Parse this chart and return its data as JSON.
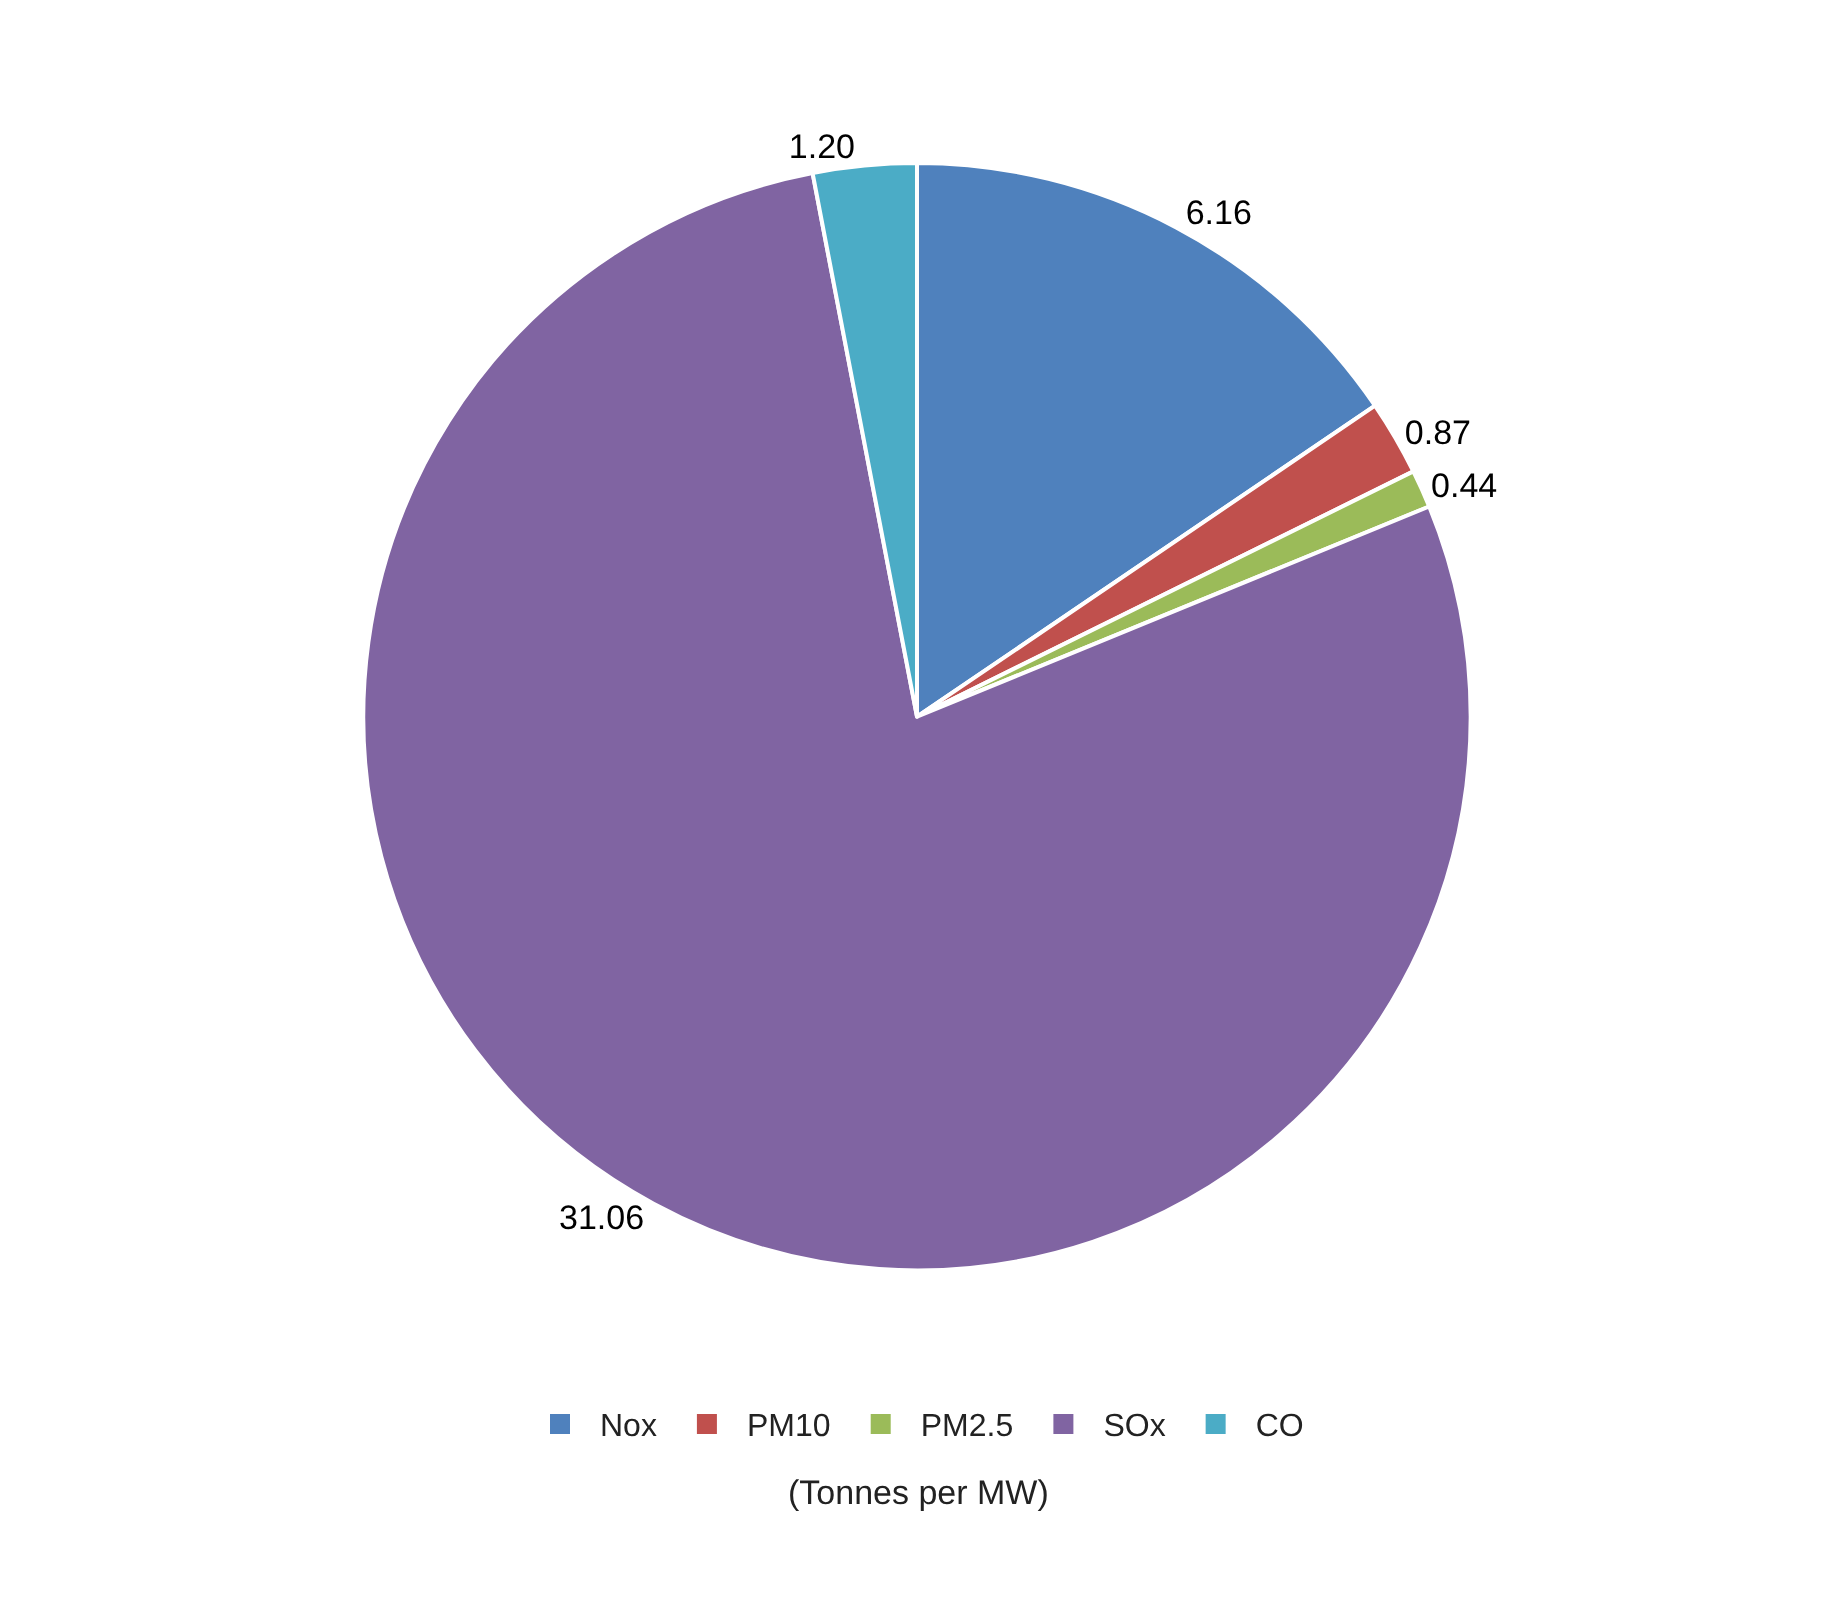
{
  "chart_data": {
    "type": "pie",
    "categories": [
      "Nox",
      "PM10",
      "PM2.5",
      "SOx",
      "CO"
    ],
    "values": [
      6.16,
      0.87,
      0.44,
      31.06,
      1.2
    ],
    "value_labels": [
      "6.16",
      "0.87",
      "0.44",
      "31.06",
      "1.20"
    ],
    "colors": [
      "#4f81bd",
      "#c0504d",
      "#9bbb59",
      "#8064a2",
      "#4bacc6"
    ],
    "legend": "bottom",
    "annotations": [
      "(Tonnes per MW)"
    ]
  }
}
